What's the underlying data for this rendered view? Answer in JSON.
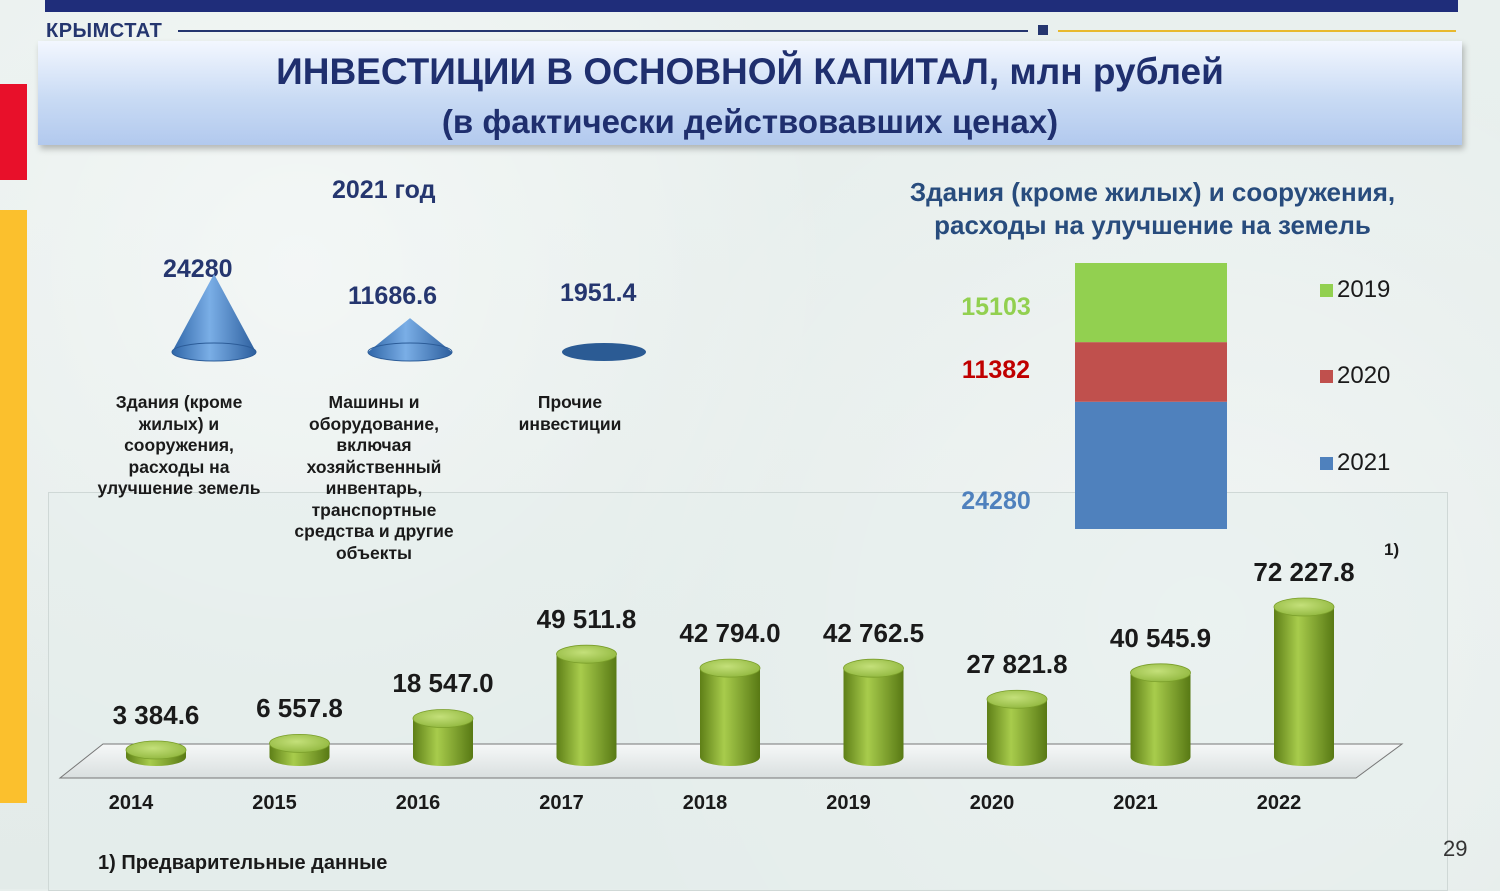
{
  "header": {
    "brand": "КРЫМСТАТ",
    "title_line1": "ИНВЕСТИЦИИ В ОСНОВНОЙ КАПИТАЛ, млн рублей",
    "title_line2": "(в фактически действовавших ценах)"
  },
  "cone_section": {
    "title": "2021 год",
    "items": [
      {
        "value": "24280",
        "label": "Здания (кроме\nжилых) и\nсооружения,\nрасходы на\nулучшение земель"
      },
      {
        "value": "11686.6",
        "label": "Машины и\nоборудование,\nвключая\nхозяйственный\nинвентарь,\nтранспортные\nсредства и другие\nобъекты"
      },
      {
        "value": "1951.4",
        "label": "Прочие\nинвестиции"
      }
    ]
  },
  "stack_section": {
    "title_line1": "Здания (кроме жилых) и сооружения,",
    "title_line2": "расходы на улучшение на земель"
  },
  "footnote_mark": "1)",
  "footnote": "1) Предварительные данные",
  "page_number": "29",
  "colors": {
    "navy": "#1f2d7a",
    "bar_green": "#7fa62a",
    "cone_blue": "#4f86c6",
    "series_2019": "#92d050",
    "series_2020": "#c0504d",
    "series_2021": "#4f81bd"
  },
  "chart_data": [
    {
      "type": "bar",
      "categories": [
        "2014",
        "2015",
        "2016",
        "2017",
        "2018",
        "2019",
        "2020",
        "2021",
        "2022"
      ],
      "values": [
        3384.6,
        6557.8,
        18547.0,
        49511.8,
        42794.0,
        42762.5,
        27821.8,
        40545.9,
        72227.8
      ],
      "value_labels": [
        "3 384.6",
        "6 557.8",
        "18 547.0",
        "49 511.8",
        "42 794.0",
        "42 762.5",
        "27 821.8",
        "40 545.9",
        "72 227.8"
      ],
      "title": "",
      "xlabel": "",
      "ylabel": ""
    },
    {
      "type": "bar",
      "stacked": true,
      "categories": [
        ""
      ],
      "series": [
        {
          "name": "2021",
          "values": [
            24280
          ]
        },
        {
          "name": "2020",
          "values": [
            11382
          ]
        },
        {
          "name": "2019",
          "values": [
            15103
          ]
        }
      ],
      "legend": "right"
    },
    {
      "type": "bar",
      "style": "cone",
      "categories": [
        "Здания (кроме жилых) и сооружения, расходы на улучшение земель",
        "Машины и оборудование, включая хозяйственный инвентарь, транспортные средства и другие объекты",
        "Прочие инвестиции"
      ],
      "values": [
        24280,
        11686.6,
        1951.4
      ]
    }
  ]
}
